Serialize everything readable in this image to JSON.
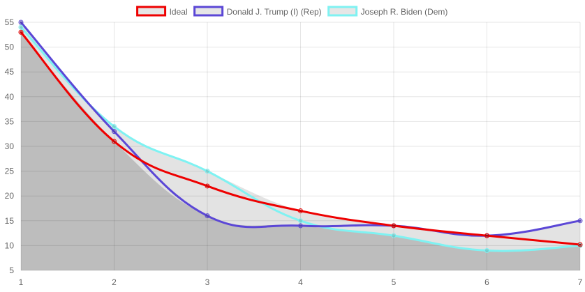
{
  "chart_data": {
    "type": "line",
    "title": "",
    "xlabel": "",
    "ylabel": "",
    "x": [
      1,
      2,
      3,
      4,
      5,
      6,
      7
    ],
    "xlim": [
      1,
      7
    ],
    "ylim": [
      5,
      55
    ],
    "y_ticks": [
      5,
      10,
      15,
      20,
      25,
      30,
      35,
      40,
      45,
      50,
      55
    ],
    "grid": true,
    "legend_position": "top",
    "series": [
      {
        "name": "Ideal",
        "values": [
          53,
          31,
          22,
          17,
          14,
          12,
          10.2
        ],
        "color": "#ee0000",
        "fill": "#e6e6e6"
      },
      {
        "name": "Donald J. Trump (I) (Rep)",
        "values": [
          55,
          33,
          16,
          14,
          14,
          12,
          15
        ],
        "color": "#5b47d6",
        "fill": "#e6e6e6"
      },
      {
        "name": "Joseph R. Biden (Dem)",
        "values": [
          54,
          34,
          25,
          15,
          12,
          9,
          10
        ],
        "color": "#7ff2f2",
        "fill": "#e6e6e6"
      }
    ],
    "area_under_lowest_color": "#bdbdbd",
    "area_between_color": "#e3e3e3"
  }
}
